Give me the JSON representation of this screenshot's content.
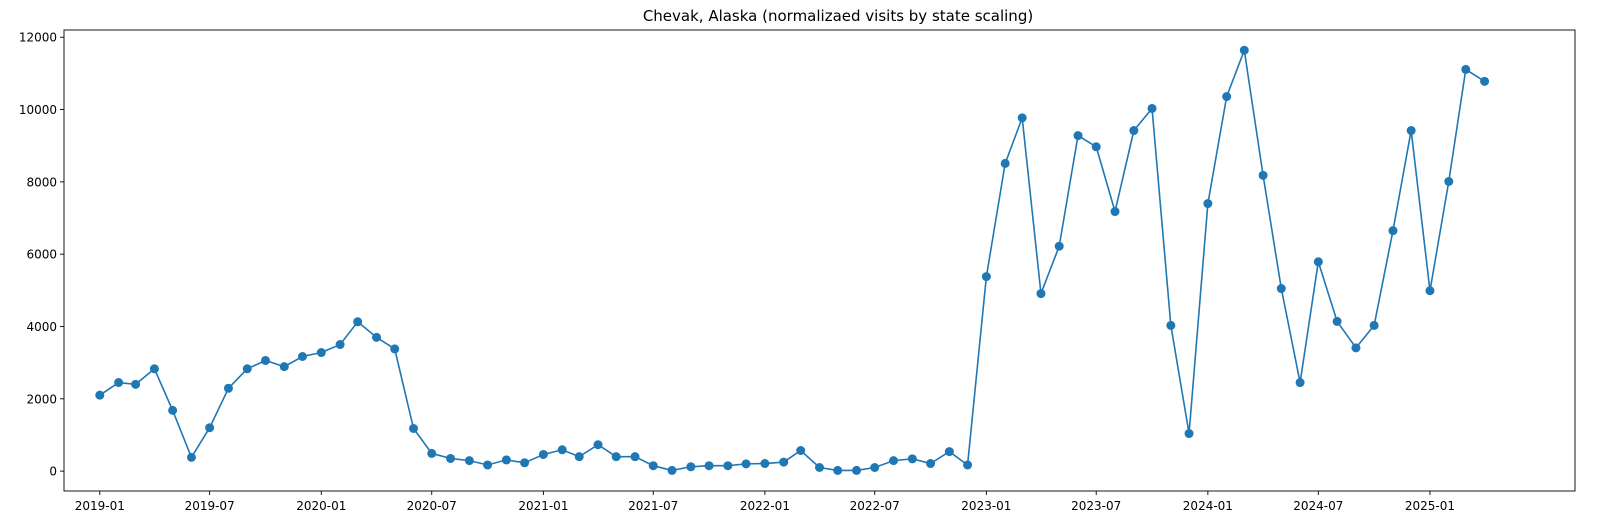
{
  "chart_data": {
    "type": "line",
    "title": "Chevak, Alaska (normalizaed visits by state scaling)",
    "xlabel": "",
    "ylabel": "",
    "color": "#1f77b4",
    "marker": "circle",
    "grid": false,
    "xlim": [
      "2018-11-03",
      "2025-08-28"
    ],
    "ylim": [
      -550,
      12200
    ],
    "x_ticks": [
      {
        "date": "2019-01-01",
        "label": "2019-01"
      },
      {
        "date": "2019-07-01",
        "label": "2019-07"
      },
      {
        "date": "2020-01-01",
        "label": "2020-01"
      },
      {
        "date": "2020-07-01",
        "label": "2020-07"
      },
      {
        "date": "2021-01-01",
        "label": "2021-01"
      },
      {
        "date": "2021-07-01",
        "label": "2021-07"
      },
      {
        "date": "2022-01-01",
        "label": "2022-01"
      },
      {
        "date": "2022-07-01",
        "label": "2022-07"
      },
      {
        "date": "2023-01-01",
        "label": "2023-01"
      },
      {
        "date": "2023-07-01",
        "label": "2023-07"
      },
      {
        "date": "2024-01-01",
        "label": "2024-01"
      },
      {
        "date": "2024-07-01",
        "label": "2024-07"
      },
      {
        "date": "2025-01-01",
        "label": "2025-01"
      }
    ],
    "y_ticks": [
      0,
      2000,
      4000,
      6000,
      8000,
      10000,
      12000
    ],
    "x": [
      "2019-01-01",
      "2019-02-01",
      "2019-03-01",
      "2019-04-01",
      "2019-05-01",
      "2019-06-01",
      "2019-07-01",
      "2019-08-01",
      "2019-09-01",
      "2019-10-01",
      "2019-11-01",
      "2019-12-01",
      "2020-01-01",
      "2020-02-01",
      "2020-03-01",
      "2020-04-01",
      "2020-05-01",
      "2020-06-01",
      "2020-07-01",
      "2020-08-01",
      "2020-09-01",
      "2020-10-01",
      "2020-11-01",
      "2020-12-01",
      "2021-01-01",
      "2021-02-01",
      "2021-03-01",
      "2021-04-01",
      "2021-05-01",
      "2021-06-01",
      "2021-07-01",
      "2021-08-01",
      "2021-09-01",
      "2021-10-01",
      "2021-11-01",
      "2021-12-01",
      "2022-01-01",
      "2022-02-01",
      "2022-03-01",
      "2022-04-01",
      "2022-05-01",
      "2022-06-01",
      "2022-07-01",
      "2022-08-01",
      "2022-09-01",
      "2022-10-01",
      "2022-11-01",
      "2022-12-01",
      "2023-01-01",
      "2023-02-01",
      "2023-03-01",
      "2023-04-01",
      "2023-05-01",
      "2023-06-01",
      "2023-07-01",
      "2023-08-01",
      "2023-09-01",
      "2023-10-01",
      "2023-11-01",
      "2023-12-01",
      "2024-01-01",
      "2024-02-01",
      "2024-03-01",
      "2024-04-01",
      "2024-05-01",
      "2024-06-01",
      "2024-07-01",
      "2024-08-01",
      "2024-09-01",
      "2024-10-01",
      "2024-11-01",
      "2024-12-01",
      "2025-01-01",
      "2025-02-01",
      "2025-03-01",
      "2025-04-01"
    ],
    "y": [
      2100,
      2450,
      2400,
      2830,
      1680,
      380,
      1200,
      2290,
      2830,
      3060,
      2890,
      3170,
      3280,
      3500,
      4130,
      3700,
      3380,
      1180,
      490,
      350,
      290,
      170,
      310,
      230,
      460,
      590,
      400,
      730,
      400,
      400,
      150,
      20,
      120,
      150,
      150,
      200,
      210,
      250,
      570,
      100,
      20,
      20,
      100,
      290,
      340,
      210,
      540,
      170,
      5380,
      8510,
      9770,
      4910,
      6220,
      9280,
      8970,
      7180,
      9420,
      10030,
      4030,
      1040,
      7400,
      10360,
      11640,
      8180,
      5050,
      2450,
      5790,
      4140,
      3410,
      4030,
      6650,
      9420,
      4990,
      8010,
      11110,
      10780
    ]
  }
}
